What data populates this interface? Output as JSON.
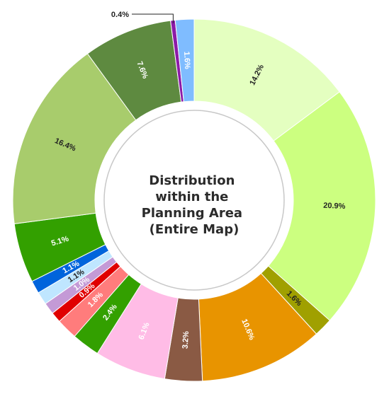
{
  "chart_data": {
    "type": "pie",
    "variant": "donut",
    "center_title_lines": [
      "Distribution",
      "within the",
      "Planning Area",
      "(Entire Map)"
    ],
    "slices": [
      {
        "label": "14.2%",
        "value": 14.2,
        "color": "#e4ffc0",
        "label_color": "#222222"
      },
      {
        "label": "20.9%",
        "value": 20.9,
        "color": "#ccff80",
        "label_color": "#222222"
      },
      {
        "label": "1.6%",
        "value": 1.6,
        "color": "#a0a000",
        "label_color": "#222222"
      },
      {
        "label": "10.6%",
        "value": 10.6,
        "color": "#e89400",
        "label_color": "#ffffff"
      },
      {
        "label": "3.2%",
        "value": 3.2,
        "color": "#8a5a44",
        "label_color": "#ffffff"
      },
      {
        "label": "6.1%",
        "value": 6.1,
        "color": "#ffbce6",
        "label_color": "#ffffff"
      },
      {
        "label": "2.4%",
        "value": 2.4,
        "color": "#33a000",
        "label_color": "#ffffff"
      },
      {
        "label": "1.8%",
        "value": 1.8,
        "color": "#ff7c7c",
        "label_color": "#ffffff"
      },
      {
        "label": "0.9%",
        "value": 0.9,
        "color": "#e00000",
        "label_color": "#ffffff"
      },
      {
        "label": "1.0%",
        "value": 1.0,
        "color": "#c49ad6",
        "label_color": "#ffffff"
      },
      {
        "label": "1.1%",
        "value": 1.1,
        "color": "#bfe6ff",
        "label_color": "#222222"
      },
      {
        "label": "1.1%",
        "value": 1.1,
        "color": "#0064dc",
        "label_color": "#ffffff"
      },
      {
        "label": "5.1%",
        "value": 5.1,
        "color": "#33a000",
        "label_color": "#ffffff"
      },
      {
        "label": "16.4%",
        "value": 16.4,
        "color": "#a8cc6c",
        "label_color": "#222222"
      },
      {
        "label": "7.6%",
        "value": 7.6,
        "color": "#5e8a40",
        "label_color": "#ffffff"
      },
      {
        "label": "0.4%",
        "value": 0.4,
        "color": "#8c1aa8",
        "label_color": "#222222",
        "callout": true
      },
      {
        "label": "1.6%",
        "value": 1.6,
        "color": "#7fbcff",
        "label_color": "#ffffff"
      }
    ]
  }
}
